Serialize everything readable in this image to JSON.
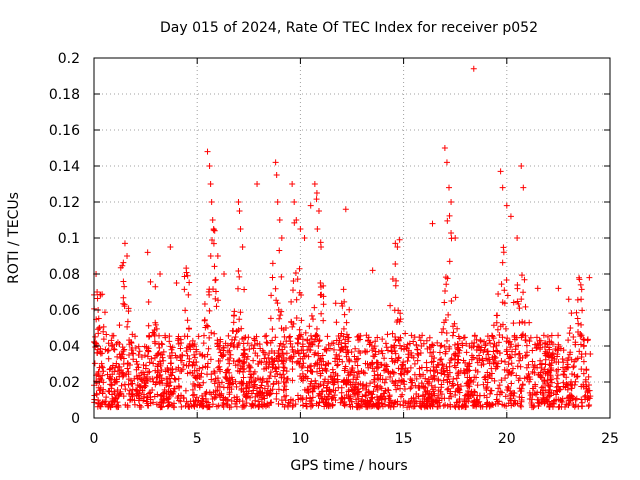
{
  "chart_data": {
    "type": "scatter",
    "title": "Day 015 of 2024, Rate Of TEC Index for receiver p052",
    "xlabel": "GPS time / hours",
    "ylabel": "ROTI / TECUs",
    "xlim": [
      0,
      25
    ],
    "ylim": [
      0,
      0.2
    ],
    "xticks": [
      "0",
      "5",
      "10",
      "15",
      "20",
      "25"
    ],
    "yticks": [
      "0",
      "0.02",
      "0.04",
      "0.06",
      "0.08",
      "0.1",
      "0.12",
      "0.14",
      "0.16",
      "0.18",
      "0.2"
    ],
    "grid": true,
    "marker": "plus",
    "series_color": "#ff0000",
    "series": [
      {
        "name": "ROTI",
        "x": [
          0.1,
          0.15,
          0.2,
          0.25,
          1.5,
          1.6,
          2.6,
          3.2,
          3.7,
          4.0,
          5.5,
          5.6,
          5.65,
          5.7,
          5.75,
          5.8,
          6.0,
          6.3,
          7.0,
          7.05,
          7.1,
          7.2,
          7.9,
          8.8,
          8.85,
          8.9,
          9.0,
          9.1,
          9.6,
          9.7,
          9.8,
          10.0,
          10.2,
          10.5,
          10.7,
          10.8,
          10.9,
          11.0,
          12.2,
          13.5,
          14.6,
          14.7,
          16.4,
          17.0,
          17.1,
          17.2,
          17.3,
          17.5,
          18.4,
          19.7,
          19.8,
          20.0,
          20.2,
          20.5,
          20.7,
          20.8,
          21.5,
          22.5,
          23.0,
          23.6,
          24.0
        ],
        "y": [
          0.08,
          0.07,
          0.06,
          0.05,
          0.097,
          0.09,
          0.092,
          0.08,
          0.095,
          0.075,
          0.148,
          0.14,
          0.13,
          0.12,
          0.11,
          0.105,
          0.09,
          0.08,
          0.12,
          0.115,
          0.105,
          0.095,
          0.13,
          0.142,
          0.135,
          0.12,
          0.11,
          0.1,
          0.13,
          0.12,
          0.11,
          0.105,
          0.1,
          0.118,
          0.13,
          0.125,
          0.115,
          0.095,
          0.116,
          0.082,
          0.097,
          0.095,
          0.108,
          0.15,
          0.142,
          0.128,
          0.12,
          0.1,
          0.194,
          0.137,
          0.128,
          0.118,
          0.112,
          0.1,
          0.14,
          0.128,
          0.072,
          0.072,
          0.066,
          0.066,
          0.078
        ]
      }
    ]
  }
}
